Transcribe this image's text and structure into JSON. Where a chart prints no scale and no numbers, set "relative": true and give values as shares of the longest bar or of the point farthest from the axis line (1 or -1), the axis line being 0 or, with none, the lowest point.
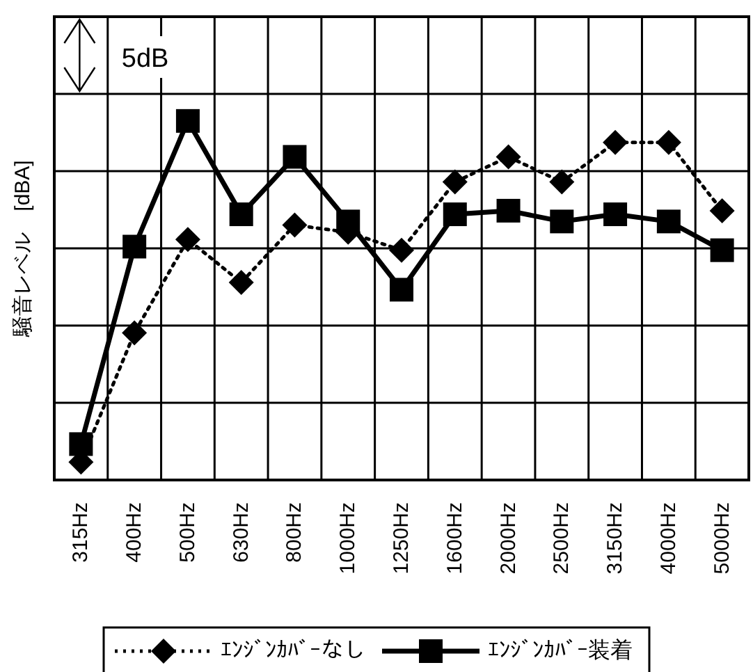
{
  "chart_data": {
    "type": "line",
    "relative": true,
    "ylabel": "騒音レベル　[dBA]",
    "annotations": [
      "5dB"
    ],
    "grid": true,
    "legend": "bottom",
    "categories": [
      "315Hz",
      "400Hz",
      "500Hz",
      "630Hz",
      "800Hz",
      "1000Hz",
      "1250Hz",
      "1600Hz",
      "2000Hz",
      "2500Hz",
      "3150Hz",
      "4000Hz",
      "5000Hz"
    ],
    "series": [
      {
        "name": "ｴﾝｼﾞﾝｶﾊﾞｰなし",
        "color": "#000000",
        "marker": "diamond",
        "line_style": "dotted",
        "values": [
          0.05,
          0.41,
          0.67,
          0.55,
          0.71,
          0.69,
          0.64,
          0.83,
          0.9,
          0.83,
          0.94,
          0.94,
          0.75
        ]
      },
      {
        "name": "ｴﾝｼﾞﾝｶﾊﾞｰ装着",
        "color": "#000000",
        "marker": "square",
        "line_style": "solid",
        "values": [
          0.1,
          0.65,
          1,
          0.74,
          0.9,
          0.72,
          0.53,
          0.74,
          0.75,
          0.72,
          0.74,
          0.72,
          0.64
        ]
      }
    ]
  }
}
